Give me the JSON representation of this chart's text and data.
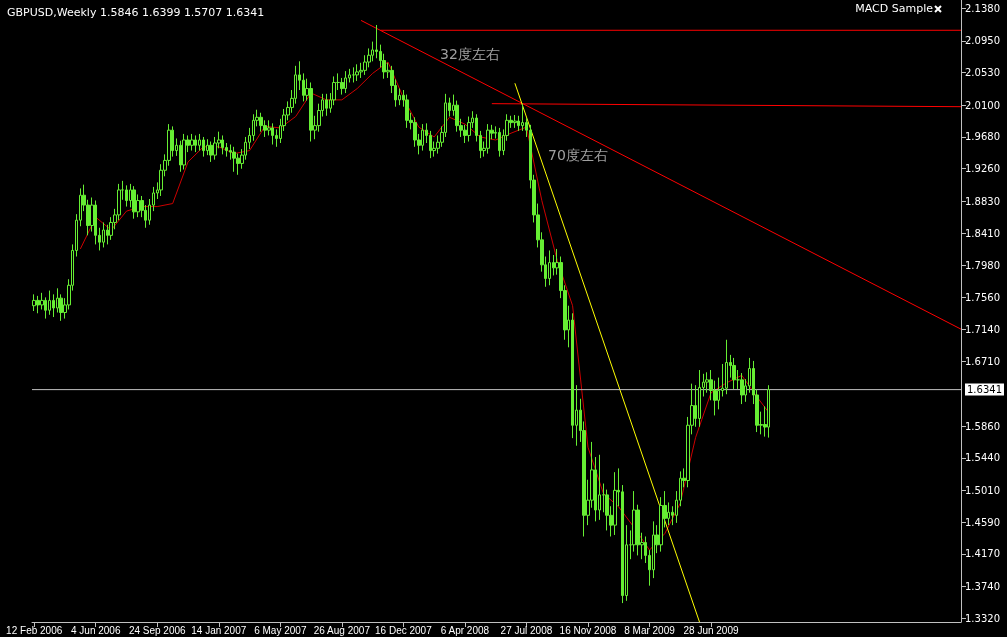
{
  "chart_data": {
    "type": "candlestick",
    "title": "GBPUSD,Weekly 1.5846 1.6399 1.5707 1.6341",
    "color": "#66ee33",
    "grid": false,
    "annotations": [
      "MACD Sample",
      "32度左右",
      "70度左右"
    ],
    "xlim": [
      "2006-02-08",
      "2010-09-26"
    ],
    "ylim": [
      1.327,
      2.149
    ],
    "xticks": [
      {
        "value": "2006-02-12",
        "label": "12 Feb 2006"
      },
      {
        "value": "2006-06-04",
        "label": "4 Jun 2006"
      },
      {
        "value": "2006-09-24",
        "label": "24 Sep 2006"
      },
      {
        "value": "2007-01-14",
        "label": "14 Jan 2007"
      },
      {
        "value": "2007-05-06",
        "label": "6 May 2007"
      },
      {
        "value": "2007-08-26",
        "label": "26 Aug 2007"
      },
      {
        "value": "2007-12-16",
        "label": "16 Dec 2007"
      },
      {
        "value": "2008-04-06",
        "label": "6 Apr 2008"
      },
      {
        "value": "2008-07-27",
        "label": "27 Jul 2008"
      },
      {
        "value": "2008-11-16",
        "label": "16 Nov 2008"
      },
      {
        "value": "2009-03-08",
        "label": "8 Mar 2009"
      },
      {
        "value": "2009-06-28",
        "label": "28 Jun 2009"
      }
    ],
    "yticks": [
      {
        "value": 1.332,
        "label": "1.3320"
      },
      {
        "value": 1.374,
        "label": "1.3740"
      },
      {
        "value": 1.417,
        "label": "1.4170"
      },
      {
        "value": 1.459,
        "label": "1.4590"
      },
      {
        "value": 1.501,
        "label": "1.5010"
      },
      {
        "value": 1.544,
        "label": "1.5440"
      },
      {
        "value": 1.586,
        "label": "1.5860"
      },
      {
        "value": 1.671,
        "label": "1.6710"
      },
      {
        "value": 1.714,
        "label": "1.7140"
      },
      {
        "value": 1.756,
        "label": "1.7560"
      },
      {
        "value": 1.798,
        "label": "1.7980"
      },
      {
        "value": 1.841,
        "label": "1.8410"
      },
      {
        "value": 1.883,
        "label": "1.8830"
      },
      {
        "value": 1.926,
        "label": "1.9260"
      },
      {
        "value": 1.968,
        "label": "1.9680"
      },
      {
        "value": 2.01,
        "label": "2.0100"
      },
      {
        "value": 2.053,
        "label": "2.0530"
      },
      {
        "value": 2.095,
        "label": "2.0950"
      },
      {
        "value": 2.138,
        "label": "2.1380"
      }
    ],
    "ref_lines": [
      {
        "axis": "y",
        "value": 1.6341,
        "label": "1.6341",
        "color": "#c0c0c0"
      }
    ],
    "x": [
      "2006-02-12",
      "2006-02-19",
      "2006-02-26",
      "2006-03-05",
      "2006-03-12",
      "2006-03-19",
      "2006-03-26",
      "2006-04-02",
      "2006-04-09",
      "2006-04-16",
      "2006-04-23",
      "2006-04-30",
      "2006-05-07",
      "2006-05-14",
      "2006-05-21",
      "2006-05-28",
      "2006-06-04",
      "2006-06-11",
      "2006-06-18",
      "2006-06-25",
      "2006-07-02",
      "2006-07-09",
      "2006-07-16",
      "2006-07-23",
      "2006-07-30",
      "2006-08-06",
      "2006-08-13",
      "2006-08-20",
      "2006-08-27",
      "2006-09-03",
      "2006-09-10",
      "2006-09-17",
      "2006-09-24",
      "2006-10-01",
      "2006-10-08",
      "2006-10-15",
      "2006-10-22",
      "2006-10-29",
      "2006-11-05",
      "2006-11-12",
      "2006-11-19",
      "2006-11-26",
      "2006-12-03",
      "2006-12-10",
      "2006-12-17",
      "2006-12-24",
      "2006-12-31",
      "2007-01-07",
      "2007-01-14",
      "2007-01-21",
      "2007-01-28",
      "2007-02-04",
      "2007-02-11",
      "2007-02-18",
      "2007-02-25",
      "2007-03-04",
      "2007-03-11",
      "2007-03-18",
      "2007-03-25",
      "2007-04-01",
      "2007-04-08",
      "2007-04-15",
      "2007-04-22",
      "2007-04-29",
      "2007-05-06",
      "2007-05-13",
      "2007-05-20",
      "2007-05-27",
      "2007-06-03",
      "2007-06-10",
      "2007-06-17",
      "2007-06-24",
      "2007-07-01",
      "2007-07-08",
      "2007-07-15",
      "2007-07-22",
      "2007-07-29",
      "2007-08-05",
      "2007-08-12",
      "2007-08-19",
      "2007-08-26",
      "2007-09-02",
      "2007-09-09",
      "2007-09-16",
      "2007-09-23",
      "2007-09-30",
      "2007-10-07",
      "2007-10-14",
      "2007-10-21",
      "2007-10-28",
      "2007-11-04",
      "2007-11-11",
      "2007-11-18",
      "2007-11-25",
      "2007-12-02",
      "2007-12-09",
      "2007-12-16",
      "2007-12-23",
      "2007-12-30",
      "2008-01-06",
      "2008-01-13",
      "2008-01-20",
      "2008-01-27",
      "2008-02-03",
      "2008-02-10",
      "2008-02-17",
      "2008-02-24",
      "2008-03-02",
      "2008-03-09",
      "2008-03-16",
      "2008-03-23",
      "2008-03-30",
      "2008-04-06",
      "2008-04-13",
      "2008-04-20",
      "2008-04-27",
      "2008-05-04",
      "2008-05-11",
      "2008-05-18",
      "2008-05-25",
      "2008-06-01",
      "2008-06-08",
      "2008-06-15",
      "2008-06-22",
      "2008-06-29",
      "2008-07-06",
      "2008-07-13",
      "2008-07-20",
      "2008-07-27",
      "2008-08-03",
      "2008-08-10",
      "2008-08-17",
      "2008-08-24",
      "2008-08-31",
      "2008-09-07",
      "2008-09-14",
      "2008-09-21",
      "2008-09-28",
      "2008-10-05",
      "2008-10-12",
      "2008-10-19",
      "2008-10-26",
      "2008-11-02",
      "2008-11-09",
      "2008-11-16",
      "2008-11-23",
      "2008-11-30",
      "2008-12-07",
      "2008-12-14",
      "2008-12-21",
      "2008-12-28",
      "2009-01-04",
      "2009-01-11",
      "2009-01-18",
      "2009-01-25",
      "2009-02-01",
      "2009-02-08",
      "2009-02-15",
      "2009-02-22",
      "2009-03-01",
      "2009-03-08",
      "2009-03-15",
      "2009-03-22",
      "2009-03-29",
      "2009-04-05",
      "2009-04-12",
      "2009-04-19",
      "2009-04-26",
      "2009-05-03",
      "2009-05-10",
      "2009-05-17",
      "2009-05-24",
      "2009-05-31",
      "2009-06-07",
      "2009-06-14",
      "2009-06-21",
      "2009-06-28",
      "2009-07-05",
      "2009-07-12",
      "2009-07-19",
      "2009-07-26",
      "2009-08-02",
      "2009-08-09",
      "2009-08-16",
      "2009-08-23",
      "2009-08-30",
      "2009-09-06",
      "2009-09-13",
      "2009-09-20",
      "2009-09-27",
      "2009-10-04",
      "2009-10-11"
    ],
    "ohlc": [
      [
        1.745,
        1.76,
        1.738,
        1.752
      ],
      [
        1.752,
        1.758,
        1.735,
        1.746
      ],
      [
        1.746,
        1.762,
        1.74,
        1.752
      ],
      [
        1.752,
        1.756,
        1.728,
        1.739
      ],
      [
        1.739,
        1.765,
        1.733,
        1.752
      ],
      [
        1.752,
        1.76,
        1.73,
        1.742
      ],
      [
        1.742,
        1.768,
        1.736,
        1.755
      ],
      [
        1.755,
        1.76,
        1.725,
        1.736
      ],
      [
        1.736,
        1.755,
        1.728,
        1.746
      ],
      [
        1.746,
        1.78,
        1.74,
        1.772
      ],
      [
        1.772,
        1.826,
        1.765,
        1.818
      ],
      [
        1.818,
        1.866,
        1.81,
        1.858
      ],
      [
        1.858,
        1.9,
        1.85,
        1.891
      ],
      [
        1.891,
        1.905,
        1.87,
        1.878
      ],
      [
        1.878,
        1.885,
        1.838,
        1.851
      ],
      [
        1.851,
        1.888,
        1.843,
        1.878
      ],
      [
        1.878,
        1.884,
        1.826,
        1.838
      ],
      [
        1.838,
        1.848,
        1.818,
        1.829
      ],
      [
        1.829,
        1.855,
        1.822,
        1.845
      ],
      [
        1.845,
        1.852,
        1.826,
        1.838
      ],
      [
        1.838,
        1.862,
        1.832,
        1.855
      ],
      [
        1.855,
        1.873,
        1.846,
        1.865
      ],
      [
        1.865,
        1.906,
        1.858,
        1.898
      ],
      [
        1.898,
        1.91,
        1.885,
        1.898
      ],
      [
        1.898,
        1.904,
        1.876,
        1.884
      ],
      [
        1.884,
        1.906,
        1.875,
        1.898
      ],
      [
        1.898,
        1.903,
        1.86,
        1.869
      ],
      [
        1.869,
        1.892,
        1.862,
        1.884
      ],
      [
        1.884,
        1.89,
        1.862,
        1.871
      ],
      [
        1.871,
        1.878,
        1.848,
        1.858
      ],
      [
        1.858,
        1.886,
        1.852,
        1.878
      ],
      [
        1.878,
        1.902,
        1.87,
        1.894
      ],
      [
        1.894,
        1.908,
        1.886,
        1.898
      ],
      [
        1.898,
        1.932,
        1.89,
        1.924
      ],
      [
        1.924,
        1.945,
        1.916,
        1.937
      ],
      [
        1.937,
        1.985,
        1.93,
        1.977
      ],
      [
        1.977,
        1.982,
        1.942,
        1.95
      ],
      [
        1.95,
        1.966,
        1.943,
        1.957
      ],
      [
        1.957,
        1.963,
        1.922,
        1.931
      ],
      [
        1.931,
        1.972,
        1.925,
        1.964
      ],
      [
        1.964,
        1.97,
        1.948,
        1.957
      ],
      [
        1.957,
        1.972,
        1.95,
        1.964
      ],
      [
        1.964,
        1.97,
        1.948,
        1.957
      ],
      [
        1.957,
        1.972,
        1.95,
        1.964
      ],
      [
        1.964,
        1.968,
        1.942,
        1.95
      ],
      [
        1.95,
        1.965,
        1.944,
        1.957
      ],
      [
        1.957,
        1.962,
        1.935,
        1.944
      ],
      [
        1.944,
        1.968,
        1.938,
        1.96
      ],
      [
        1.96,
        1.975,
        1.953,
        1.964
      ],
      [
        1.964,
        1.97,
        1.945,
        1.954
      ],
      [
        1.954,
        1.96,
        1.942,
        1.95
      ],
      [
        1.95,
        1.958,
        1.938,
        1.948
      ],
      [
        1.948,
        1.955,
        1.922,
        1.94
      ],
      [
        1.94,
        1.946,
        1.918,
        1.933
      ],
      [
        1.933,
        1.952,
        1.926,
        1.944
      ],
      [
        1.944,
        1.968,
        1.938,
        1.961
      ],
      [
        1.961,
        1.98,
        1.952,
        1.97
      ],
      [
        1.97,
        1.998,
        1.963,
        1.99
      ],
      [
        1.99,
        2.004,
        1.982,
        1.994
      ],
      [
        1.994,
        2.0,
        1.975,
        1.983
      ],
      [
        1.983,
        1.99,
        1.968,
        1.977
      ],
      [
        1.977,
        1.99,
        1.97,
        1.98
      ],
      [
        1.98,
        1.986,
        1.958,
        1.97
      ],
      [
        1.97,
        1.978,
        1.955,
        1.966
      ],
      [
        1.966,
        1.992,
        1.96,
        1.983
      ],
      [
        1.983,
        2.005,
        1.976,
        1.997
      ],
      [
        1.997,
        2.015,
        1.99,
        2.007
      ],
      [
        2.007,
        2.03,
        2.0,
        2.019
      ],
      [
        2.019,
        2.062,
        2.012,
        2.05
      ],
      [
        2.05,
        2.068,
        2.03,
        2.043
      ],
      [
        2.043,
        2.052,
        2.015,
        2.023
      ],
      [
        2.023,
        2.045,
        2.016,
        2.032
      ],
      [
        2.032,
        2.04,
        1.962,
        1.977
      ],
      [
        1.977,
        1.996,
        1.965,
        1.983
      ],
      [
        1.983,
        2.012,
        1.975,
        2.003
      ],
      [
        2.003,
        2.025,
        1.995,
        2.017
      ],
      [
        2.017,
        2.025,
        1.996,
        2.006
      ],
      [
        2.006,
        2.026,
        2.0,
        2.017
      ],
      [
        2.017,
        2.048,
        2.01,
        2.04
      ],
      [
        2.04,
        2.052,
        2.03,
        2.04
      ],
      [
        2.04,
        2.046,
        2.024,
        2.032
      ],
      [
        2.032,
        2.055,
        2.026,
        2.046
      ],
      [
        2.046,
        2.058,
        2.04,
        2.05
      ],
      [
        2.05,
        2.06,
        2.04,
        2.05
      ],
      [
        2.05,
        2.064,
        2.042,
        2.054
      ],
      [
        2.054,
        2.066,
        2.046,
        2.056
      ],
      [
        2.056,
        2.076,
        2.05,
        2.067
      ],
      [
        2.067,
        2.085,
        2.06,
        2.076
      ],
      [
        2.076,
        2.094,
        2.068,
        2.083
      ],
      [
        2.083,
        2.116,
        2.072,
        2.081
      ],
      [
        2.081,
        2.09,
        2.06,
        2.069
      ],
      [
        2.069,
        2.078,
        2.045,
        2.054
      ],
      [
        2.054,
        2.066,
        2.046,
        2.056
      ],
      [
        2.056,
        2.062,
        2.026,
        2.036
      ],
      [
        2.036,
        2.044,
        2.008,
        2.017
      ],
      [
        2.017,
        2.032,
        2.01,
        2.023
      ],
      [
        2.023,
        2.03,
        2.008,
        2.017
      ],
      [
        2.017,
        2.024,
        1.98,
        1.99
      ],
      [
        1.99,
        2.0,
        1.978,
        1.987
      ],
      [
        1.987,
        1.994,
        1.955,
        1.964
      ],
      [
        1.964,
        1.972,
        1.945,
        1.957
      ],
      [
        1.957,
        1.985,
        1.95,
        1.977
      ],
      [
        1.977,
        1.986,
        1.96,
        1.97
      ],
      [
        1.97,
        1.976,
        1.94,
        1.95
      ],
      [
        1.95,
        1.962,
        1.942,
        1.953
      ],
      [
        1.953,
        1.97,
        1.946,
        1.961
      ],
      [
        1.961,
        1.982,
        1.955,
        1.974
      ],
      [
        1.974,
        2.025,
        1.968,
        2.013
      ],
      [
        2.013,
        2.02,
        1.995,
        2.003
      ],
      [
        2.003,
        2.024,
        1.996,
        2.01
      ],
      [
        2.01,
        2.016,
        1.975,
        1.983
      ],
      [
        1.983,
        1.992,
        1.968,
        1.977
      ],
      [
        1.977,
        1.984,
        1.96,
        1.97
      ],
      [
        1.97,
        1.995,
        1.962,
        1.987
      ],
      [
        1.987,
        2.002,
        1.98,
        1.993
      ],
      [
        1.993,
        1.998,
        1.962,
        1.97
      ],
      [
        1.97,
        1.976,
        1.94,
        1.95
      ],
      [
        1.95,
        1.962,
        1.942,
        1.953
      ],
      [
        1.953,
        1.985,
        1.946,
        1.977
      ],
      [
        1.977,
        1.984,
        1.965,
        1.973
      ],
      [
        1.973,
        1.982,
        1.966,
        1.974
      ],
      [
        1.974,
        1.98,
        1.942,
        1.95
      ],
      [
        1.95,
        1.978,
        1.944,
        1.97
      ],
      [
        1.97,
        1.998,
        1.963,
        1.99
      ],
      [
        1.99,
        1.996,
        1.98,
        1.987
      ],
      [
        1.987,
        1.997,
        1.98,
        1.989
      ],
      [
        1.989,
        1.996,
        1.976,
        1.983
      ],
      [
        1.983,
        2.012,
        1.976,
        1.987
      ],
      [
        1.987,
        1.993,
        1.968,
        1.977
      ],
      [
        1.977,
        1.984,
        1.9,
        1.911
      ],
      [
        1.911,
        1.918,
        1.855,
        1.865
      ],
      [
        1.865,
        1.88,
        1.822,
        1.832
      ],
      [
        1.832,
        1.842,
        1.79,
        1.799
      ],
      [
        1.799,
        1.81,
        1.77,
        1.781
      ],
      [
        1.781,
        1.818,
        1.772,
        1.802
      ],
      [
        1.802,
        1.812,
        1.785,
        1.795
      ],
      [
        1.795,
        1.82,
        1.786,
        1.802
      ],
      [
        1.802,
        1.81,
        1.755,
        1.765
      ],
      [
        1.765,
        1.772,
        1.7,
        1.713
      ],
      [
        1.713,
        1.745,
        1.69,
        1.726
      ],
      [
        1.726,
        1.735,
        1.57,
        1.587
      ],
      [
        1.587,
        1.64,
        1.56,
        1.607
      ],
      [
        1.607,
        1.622,
        1.565,
        1.58
      ],
      [
        1.58,
        1.592,
        1.44,
        1.468
      ],
      [
        1.468,
        1.515,
        1.455,
        1.488
      ],
      [
        1.488,
        1.565,
        1.478,
        1.528
      ],
      [
        1.528,
        1.545,
        1.46,
        1.475
      ],
      [
        1.475,
        1.548,
        1.462,
        1.495
      ],
      [
        1.495,
        1.51,
        1.472,
        1.495
      ],
      [
        1.495,
        1.502,
        1.448,
        1.468
      ],
      [
        1.468,
        1.48,
        1.44,
        1.455
      ],
      [
        1.455,
        1.525,
        1.442,
        1.501
      ],
      [
        1.501,
        1.53,
        1.48,
        1.499
      ],
      [
        1.499,
        1.508,
        1.352,
        1.362
      ],
      [
        1.362,
        1.455,
        1.355,
        1.429
      ],
      [
        1.429,
        1.448,
        1.41,
        1.429
      ],
      [
        1.429,
        1.5,
        1.42,
        1.475
      ],
      [
        1.475,
        1.482,
        1.415,
        1.429
      ],
      [
        1.429,
        1.445,
        1.41,
        1.432
      ],
      [
        1.432,
        1.44,
        1.405,
        1.415
      ],
      [
        1.415,
        1.422,
        1.375,
        1.396
      ],
      [
        1.396,
        1.46,
        1.385,
        1.442
      ],
      [
        1.442,
        1.455,
        1.418,
        1.429
      ],
      [
        1.429,
        1.492,
        1.42,
        1.481
      ],
      [
        1.481,
        1.5,
        1.452,
        1.464
      ],
      [
        1.464,
        1.485,
        1.455,
        1.472
      ],
      [
        1.472,
        1.48,
        1.455,
        1.468
      ],
      [
        1.468,
        1.5,
        1.458,
        1.488
      ],
      [
        1.488,
        1.526,
        1.48,
        1.517
      ],
      [
        1.517,
        1.53,
        1.505,
        1.514
      ],
      [
        1.514,
        1.598,
        1.505,
        1.587
      ],
      [
        1.587,
        1.642,
        1.575,
        1.613
      ],
      [
        1.613,
        1.64,
        1.585,
        1.596
      ],
      [
        1.596,
        1.66,
        1.585,
        1.637
      ],
      [
        1.637,
        1.655,
        1.625,
        1.644
      ],
      [
        1.644,
        1.657,
        1.63,
        1.647
      ],
      [
        1.647,
        1.66,
        1.62,
        1.633
      ],
      [
        1.633,
        1.646,
        1.6,
        1.62
      ],
      [
        1.62,
        1.65,
        1.608,
        1.633
      ],
      [
        1.633,
        1.668,
        1.625,
        1.636
      ],
      [
        1.636,
        1.7,
        1.628,
        1.67
      ],
      [
        1.67,
        1.68,
        1.65,
        1.666
      ],
      [
        1.666,
        1.676,
        1.635,
        1.647
      ],
      [
        1.647,
        1.66,
        1.635,
        1.647
      ],
      [
        1.647,
        1.656,
        1.615,
        1.627
      ],
      [
        1.627,
        1.648,
        1.618,
        1.639
      ],
      [
        1.639,
        1.676,
        1.63,
        1.662
      ],
      [
        1.662,
        1.672,
        1.615,
        1.627
      ],
      [
        1.627,
        1.634,
        1.578,
        1.587
      ],
      [
        1.587,
        1.605,
        1.575,
        1.588
      ],
      [
        1.588,
        1.612,
        1.572,
        1.5846
      ],
      [
        1.5846,
        1.6399,
        1.5707,
        1.6341
      ]
    ],
    "series": [
      {
        "type": "line",
        "color": "#cc0000",
        "x": [
          "2006-05-07",
          "2006-06-04",
          "2006-07-02",
          "2006-07-30",
          "2006-08-27",
          "2006-09-24",
          "2006-10-22",
          "2006-11-19",
          "2006-12-17",
          "2007-01-14",
          "2007-02-11",
          "2007-03-11",
          "2007-04-08",
          "2007-05-06",
          "2007-06-03",
          "2007-07-01",
          "2007-07-29",
          "2007-08-26",
          "2007-09-23",
          "2007-10-21",
          "2007-11-18",
          "2007-12-16",
          "2008-01-13",
          "2008-02-10",
          "2008-03-09",
          "2008-04-06",
          "2008-05-04",
          "2008-06-01",
          "2008-06-29",
          "2008-07-27",
          "2008-08-24",
          "2008-09-21",
          "2008-10-19",
          "2008-11-16",
          "2008-12-14",
          "2009-01-11",
          "2009-02-08",
          "2009-03-08",
          "2009-04-05",
          "2009-05-03",
          "2009-05-31",
          "2009-06-28",
          "2009-07-26",
          "2009-08-23",
          "2009-09-20",
          "2009-10-11"
        ],
        "values": [
          1.82,
          1.862,
          1.845,
          1.87,
          1.876,
          1.876,
          1.88,
          1.935,
          1.955,
          1.955,
          1.946,
          1.95,
          1.982,
          1.98,
          1.995,
          2.026,
          2.017,
          2.017,
          2.032,
          2.052,
          2.067,
          2.02,
          1.981,
          1.968,
          1.994,
          1.985,
          1.968,
          1.964,
          1.973,
          1.981,
          1.884,
          1.805,
          1.745,
          1.558,
          1.497,
          1.479,
          1.452,
          1.422,
          1.444,
          1.484,
          1.571,
          1.63,
          1.643,
          1.653,
          1.624,
          1.604
        ]
      },
      {
        "type": "line",
        "color": "#ff0000",
        "x": [
          "2007-09-30",
          "2010-09-26"
        ],
        "values": [
          2.122,
          1.714
        ]
      },
      {
        "type": "line",
        "color": "#ff0000",
        "x": [
          "2007-11-04",
          "2010-09-26"
        ],
        "values": [
          2.109,
          2.109
        ]
      },
      {
        "type": "line",
        "color": "#ff0000",
        "x": [
          "2008-05-25",
          "2010-09-26"
        ],
        "values": [
          2.012,
          2.008
        ]
      },
      {
        "type": "line",
        "color": "#ffff00",
        "x": [
          "2008-07-06",
          "2009-06-07"
        ],
        "values": [
          2.039,
          1.327
        ]
      }
    ]
  }
}
